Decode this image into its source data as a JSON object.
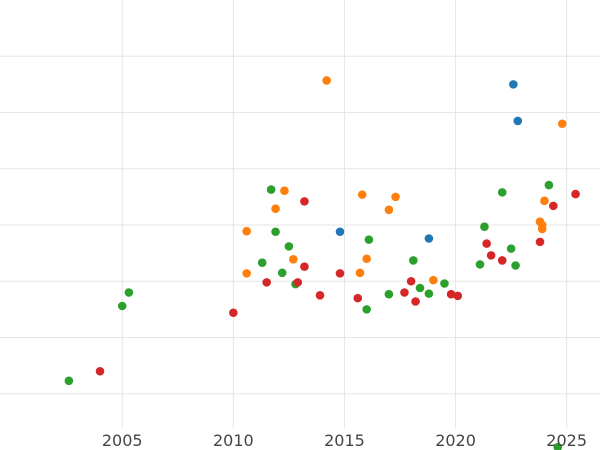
{
  "chart_data": {
    "type": "scatter",
    "title": "",
    "xlabel": "",
    "ylabel": "",
    "xlim": [
      1999.5,
      2026.5
    ],
    "ylim": [
      0,
      8
    ],
    "x_ticks": [
      2005,
      2010,
      2015,
      2020,
      2025
    ],
    "x_tick_labels": [
      "2005",
      "2010",
      "2015",
      "2020",
      "2025"
    ],
    "y_gridlines": [
      1,
      2,
      3,
      4,
      5,
      6,
      7
    ],
    "grid": true,
    "legend": "none",
    "series": [
      {
        "color": "#1f77b4",
        "points": [
          {
            "x": 2014.8,
            "y": 3.88
          },
          {
            "x": 2018.8,
            "y": 3.76
          },
          {
            "x": 2022.6,
            "y": 6.5
          },
          {
            "x": 2022.8,
            "y": 5.85
          }
        ]
      },
      {
        "color": "#ff7f0e",
        "points": [
          {
            "x": 2010.6,
            "y": 3.89
          },
          {
            "x": 2010.6,
            "y": 3.14
          },
          {
            "x": 2011.9,
            "y": 4.29
          },
          {
            "x": 2012.3,
            "y": 4.61
          },
          {
            "x": 2012.7,
            "y": 3.39
          },
          {
            "x": 2014.2,
            "y": 6.57
          },
          {
            "x": 2015.7,
            "y": 3.15
          },
          {
            "x": 2015.8,
            "y": 4.54
          },
          {
            "x": 2016.0,
            "y": 3.4
          },
          {
            "x": 2017.0,
            "y": 4.27
          },
          {
            "x": 2017.3,
            "y": 4.5
          },
          {
            "x": 2019.0,
            "y": 3.02
          },
          {
            "x": 2023.8,
            "y": 4.06
          },
          {
            "x": 2023.9,
            "y": 4.0
          },
          {
            "x": 2023.9,
            "y": 3.93
          },
          {
            "x": 2024.0,
            "y": 4.43
          },
          {
            "x": 2024.8,
            "y": 5.8
          }
        ]
      },
      {
        "color": "#2ca02c",
        "points": [
          {
            "x": 2002.6,
            "y": 1.23
          },
          {
            "x": 2005.0,
            "y": 2.56
          },
          {
            "x": 2005.3,
            "y": 2.8
          },
          {
            "x": 2011.3,
            "y": 3.33
          },
          {
            "x": 2011.7,
            "y": 4.63
          },
          {
            "x": 2011.9,
            "y": 3.88
          },
          {
            "x": 2012.2,
            "y": 3.15
          },
          {
            "x": 2012.5,
            "y": 3.62
          },
          {
            "x": 2012.8,
            "y": 2.95
          },
          {
            "x": 2016.0,
            "y": 2.5
          },
          {
            "x": 2016.1,
            "y": 3.74
          },
          {
            "x": 2017.0,
            "y": 2.77
          },
          {
            "x": 2018.1,
            "y": 3.37
          },
          {
            "x": 2018.4,
            "y": 2.88
          },
          {
            "x": 2018.8,
            "y": 2.78
          },
          {
            "x": 2019.5,
            "y": 2.96
          },
          {
            "x": 2021.1,
            "y": 3.3
          },
          {
            "x": 2021.3,
            "y": 3.97
          },
          {
            "x": 2022.1,
            "y": 4.58
          },
          {
            "x": 2022.5,
            "y": 3.58
          },
          {
            "x": 2022.7,
            "y": 3.28
          },
          {
            "x": 2024.2,
            "y": 4.71
          },
          {
            "x": 2024.6,
            "y": 0.05
          }
        ]
      },
      {
        "color": "#d62728",
        "points": [
          {
            "x": 2004.0,
            "y": 1.4
          },
          {
            "x": 2010.0,
            "y": 2.44
          },
          {
            "x": 2011.5,
            "y": 2.98
          },
          {
            "x": 2012.9,
            "y": 2.98
          },
          {
            "x": 2013.2,
            "y": 4.42
          },
          {
            "x": 2013.2,
            "y": 3.26
          },
          {
            "x": 2013.9,
            "y": 2.75
          },
          {
            "x": 2014.8,
            "y": 3.14
          },
          {
            "x": 2015.6,
            "y": 2.7
          },
          {
            "x": 2017.7,
            "y": 2.8
          },
          {
            "x": 2018.0,
            "y": 3.0
          },
          {
            "x": 2018.2,
            "y": 2.64
          },
          {
            "x": 2019.8,
            "y": 2.77
          },
          {
            "x": 2020.1,
            "y": 2.74
          },
          {
            "x": 2021.4,
            "y": 3.67
          },
          {
            "x": 2021.6,
            "y": 3.46
          },
          {
            "x": 2022.1,
            "y": 3.37
          },
          {
            "x": 2023.8,
            "y": 3.7
          },
          {
            "x": 2024.4,
            "y": 4.34
          },
          {
            "x": 2025.4,
            "y": 4.55
          }
        ]
      }
    ]
  }
}
